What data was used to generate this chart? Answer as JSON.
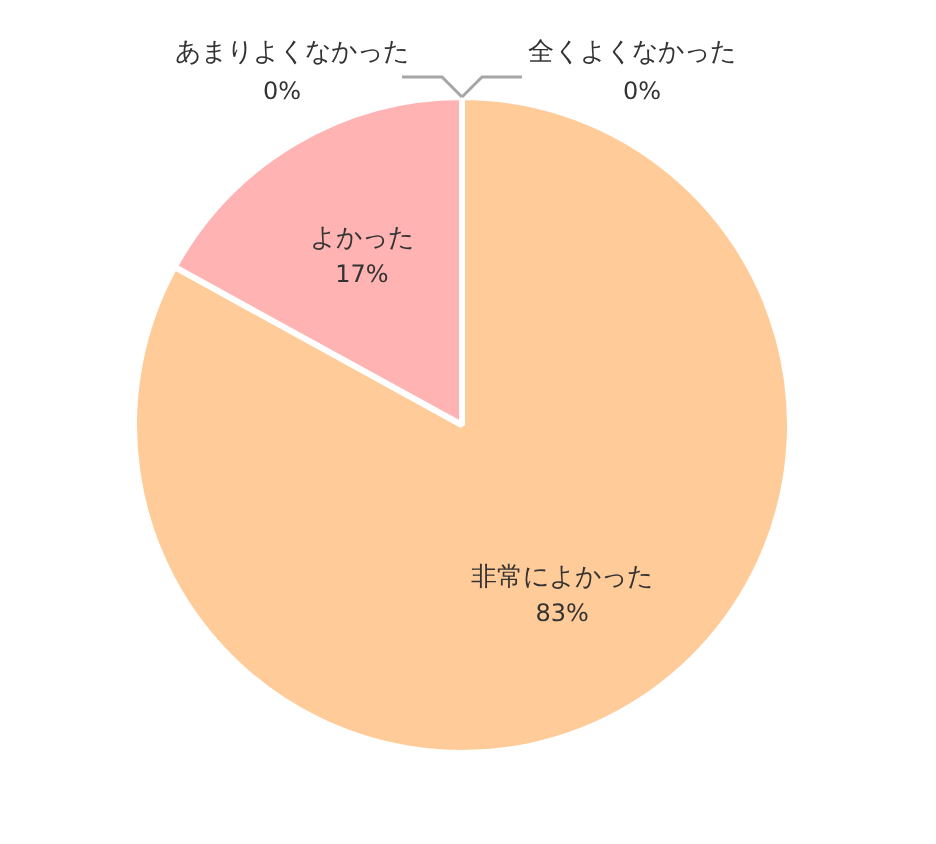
{
  "chart_data": {
    "type": "pie",
    "categories": [
      "非常によかった",
      "よかった",
      "あまりよくなかった",
      "全くよくなかった"
    ],
    "values": [
      83,
      17,
      0,
      0
    ],
    "colors": [
      "#ffcc99",
      "#ffb3b3",
      "#b3d9ff",
      "#c9c9c9"
    ],
    "value_labels": [
      "83%",
      "17%",
      "0%",
      "0%"
    ],
    "legend": false
  }
}
